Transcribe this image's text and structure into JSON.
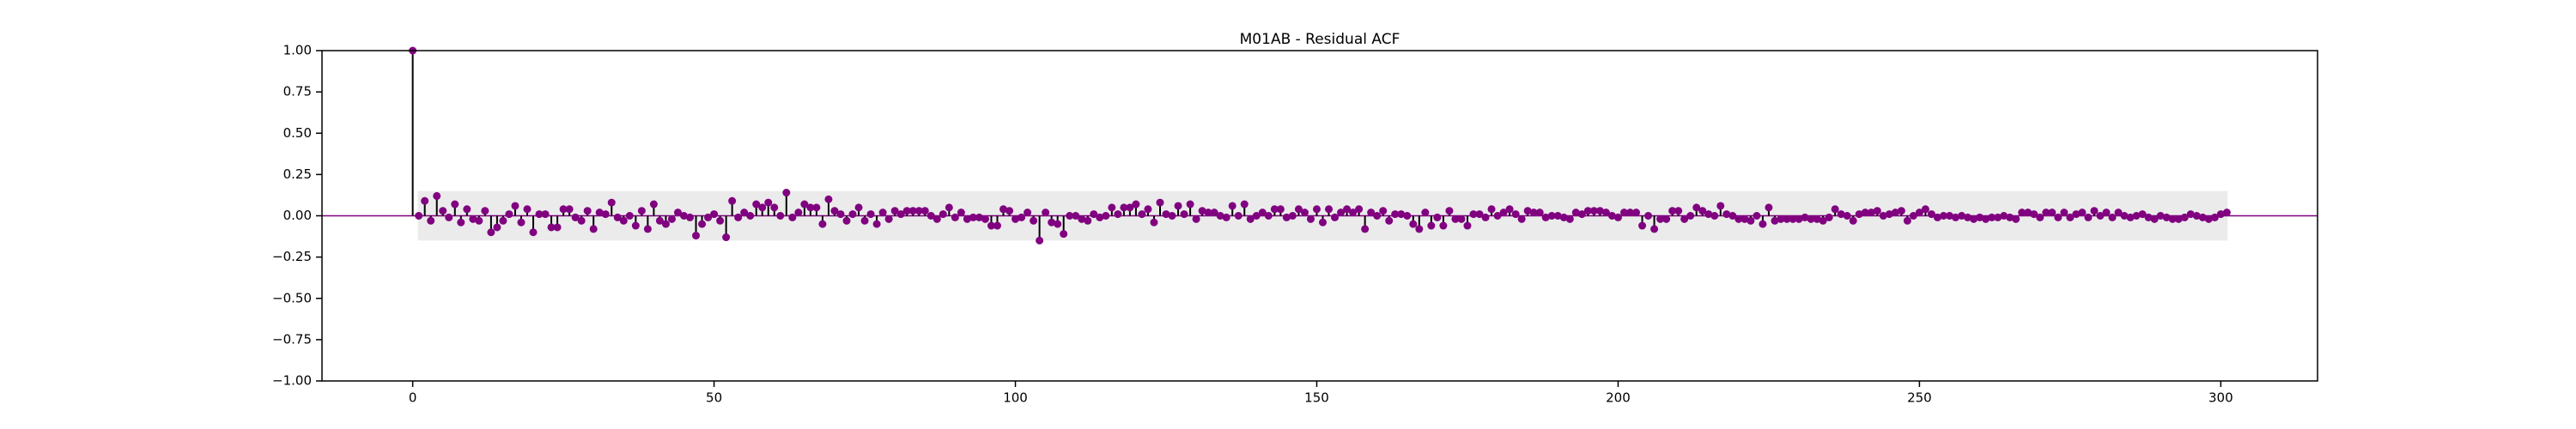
{
  "chart_data": {
    "type": "stem",
    "title": "M01AB -  Residual ACF",
    "x": [
      0,
      1,
      2,
      3,
      4,
      5,
      6,
      7,
      8,
      9,
      10,
      11,
      12,
      13,
      14,
      15,
      16,
      17,
      18,
      19,
      20,
      21,
      22,
      23,
      24,
      25,
      26,
      27,
      28,
      29,
      30,
      31,
      32,
      33,
      34,
      35,
      36,
      37,
      38,
      39,
      40,
      41,
      42,
      43,
      44,
      45,
      46,
      47,
      48,
      49,
      50,
      51,
      52,
      53,
      54,
      55,
      56,
      57,
      58,
      59,
      60,
      61,
      62,
      63,
      64,
      65,
      66,
      67,
      68,
      69,
      70,
      71,
      72,
      73,
      74,
      75,
      76,
      77,
      78,
      79,
      80,
      81,
      82,
      83,
      84,
      85,
      86,
      87,
      88,
      89,
      90,
      91,
      92,
      93,
      94,
      95,
      96,
      97,
      98,
      99,
      100,
      101,
      102,
      103,
      104,
      105,
      106,
      107,
      108,
      109,
      110,
      111,
      112,
      113,
      114,
      115,
      116,
      117,
      118,
      119,
      120,
      121,
      122,
      123,
      124,
      125,
      126,
      127,
      128,
      129,
      130,
      131,
      132,
      133,
      134,
      135,
      136,
      137,
      138,
      139,
      140,
      141,
      142,
      143,
      144,
      145,
      146,
      147,
      148,
      149,
      150,
      151,
      152,
      153,
      154,
      155,
      156,
      157,
      158,
      159,
      160,
      161,
      162,
      163,
      164,
      165,
      166,
      167,
      168,
      169,
      170,
      171,
      172,
      173,
      174,
      175,
      176,
      177,
      178,
      179,
      180,
      181,
      182,
      183,
      184,
      185,
      186,
      187,
      188,
      189,
      190,
      191,
      192,
      193,
      194,
      195,
      196,
      197,
      198,
      199,
      200,
      201,
      202,
      203,
      204,
      205,
      206,
      207,
      208,
      209,
      210,
      211,
      212,
      213,
      214,
      215,
      216,
      217,
      218,
      219,
      220,
      221,
      222,
      223,
      224,
      225,
      226,
      227,
      228,
      229,
      230,
      231,
      232,
      233,
      234,
      235,
      236,
      237,
      238,
      239,
      240,
      241,
      242,
      243,
      244,
      245,
      246,
      247,
      248,
      249,
      250,
      251,
      252,
      253,
      254,
      255,
      256,
      257,
      258,
      259,
      260,
      261,
      262,
      263,
      264,
      265,
      266,
      267,
      268,
      269,
      270,
      271,
      272,
      273,
      274,
      275,
      276,
      277,
      278,
      279,
      280,
      281,
      282,
      283,
      284,
      285,
      286,
      287,
      288,
      289,
      290,
      291,
      292,
      293,
      294,
      295,
      296,
      297,
      298,
      299,
      300,
      301
    ],
    "values": [
      1.0,
      0.0,
      0.09,
      -0.03,
      0.12,
      0.03,
      -0.01,
      0.07,
      -0.04,
      0.04,
      -0.02,
      -0.03,
      0.03,
      -0.1,
      -0.07,
      -0.03,
      0.01,
      0.06,
      -0.04,
      0.04,
      -0.1,
      0.01,
      0.01,
      -0.07,
      -0.07,
      0.04,
      0.04,
      -0.01,
      -0.03,
      0.03,
      -0.08,
      0.02,
      0.01,
      0.08,
      -0.01,
      -0.03,
      0.0,
      -0.06,
      0.03,
      -0.08,
      0.07,
      -0.03,
      -0.05,
      -0.02,
      0.02,
      0.0,
      -0.01,
      -0.12,
      -0.05,
      -0.01,
      0.01,
      -0.03,
      -0.13,
      0.09,
      -0.01,
      0.02,
      0.0,
      0.07,
      0.05,
      0.08,
      0.05,
      0.0,
      0.14,
      -0.01,
      0.02,
      0.07,
      0.05,
      0.05,
      -0.05,
      0.1,
      0.03,
      0.01,
      -0.03,
      0.01,
      0.05,
      -0.03,
      0.01,
      -0.05,
      0.02,
      -0.02,
      0.03,
      0.01,
      0.03,
      0.03,
      0.03,
      0.03,
      0.0,
      -0.02,
      0.01,
      0.05,
      -0.01,
      0.02,
      -0.02,
      -0.01,
      -0.01,
      -0.02,
      -0.06,
      -0.06,
      0.04,
      0.03,
      -0.02,
      -0.01,
      0.02,
      -0.03,
      -0.15,
      0.02,
      -0.04,
      -0.05,
      -0.11,
      0.0,
      0.0,
      -0.02,
      -0.03,
      0.01,
      -0.01,
      0.0,
      0.05,
      0.01,
      0.05,
      0.05,
      0.07,
      0.01,
      0.04,
      -0.04,
      0.08,
      0.01,
      0.0,
      0.06,
      0.01,
      0.07,
      -0.02,
      0.03,
      0.02,
      0.02,
      0.0,
      -0.01,
      0.06,
      0.0,
      0.07,
      -0.02,
      0.0,
      0.02,
      0.0,
      0.04,
      0.04,
      -0.01,
      0.0,
      0.04,
      0.02,
      -0.02,
      0.04,
      -0.04,
      0.04,
      -0.01,
      0.02,
      0.04,
      0.02,
      0.04,
      -0.08,
      0.02,
      0.0,
      0.03,
      -0.03,
      0.01,
      0.01,
      0.0,
      -0.05,
      -0.08,
      0.02,
      -0.06,
      -0.01,
      -0.06,
      0.03,
      -0.02,
      -0.02,
      -0.06,
      0.01,
      0.01,
      -0.01,
      0.04,
      0.0,
      0.02,
      0.04,
      0.01,
      -0.02,
      0.03,
      0.02,
      0.02,
      -0.01,
      0.0,
      0.0,
      -0.01,
      -0.02,
      0.02,
      0.01,
      0.03,
      0.03,
      0.03,
      0.02,
      0.0,
      -0.01,
      0.02,
      0.02,
      0.02,
      -0.06,
      0.0,
      -0.08,
      -0.02,
      -0.02,
      0.03,
      0.03,
      -0.02,
      0.0,
      0.05,
      0.03,
      0.01,
      0.0,
      0.06,
      0.01,
      0.0,
      -0.02,
      -0.02,
      -0.03,
      0.0,
      -0.05,
      0.05,
      -0.03,
      -0.02,
      -0.02,
      -0.02,
      -0.02,
      -0.01,
      -0.02,
      -0.02,
      -0.03,
      -0.01,
      0.04,
      0.01,
      0.0,
      -0.03,
      0.01,
      0.02,
      0.02,
      0.03,
      0.0,
      0.01,
      0.02,
      0.03,
      -0.03,
      0.0,
      0.02,
      0.04,
      0.01,
      -0.01,
      0.0,
      0.0,
      -0.01,
      0.0,
      -0.01,
      -0.02,
      -0.01,
      -0.02,
      -0.01,
      -0.01,
      0.0,
      -0.01,
      -0.02,
      0.02,
      0.02,
      0.01,
      -0.01,
      0.02,
      0.02,
      -0.01,
      0.02,
      -0.01,
      0.01,
      0.02,
      -0.01,
      0.03,
      0.0,
      0.02,
      -0.01,
      0.02,
      0.0,
      -0.01,
      0.0,
      0.01,
      -0.01,
      -0.02,
      0.0,
      -0.01,
      -0.02,
      -0.02,
      -0.01,
      0.01,
      0.0,
      -0.01,
      -0.02,
      -0.01,
      0.01,
      0.02
    ],
    "color": "#800080",
    "stem_color": "#000000",
    "band_color": "#ebebeb",
    "confidence_band": [
      -0.15,
      0.15
    ],
    "xlim": [
      -15.05,
      316.05
    ],
    "xticks": [
      0,
      50,
      100,
      150,
      200,
      250,
      300
    ],
    "ylim": [
      -1,
      1
    ],
    "yticks": [
      {
        "value": -1,
        "label": "−1.00"
      },
      {
        "value": -0.75,
        "label": "−0.75"
      },
      {
        "value": -0.5,
        "label": "−0.50"
      },
      {
        "value": -0.25,
        "label": "−0.25"
      },
      {
        "value": 0,
        "label": "0.00"
      },
      {
        "value": 0.25,
        "label": "0.25"
      },
      {
        "value": 0.5,
        "label": "0.50"
      },
      {
        "value": 0.75,
        "label": "0.75"
      },
      {
        "value": 1,
        "label": "1.00"
      }
    ]
  }
}
